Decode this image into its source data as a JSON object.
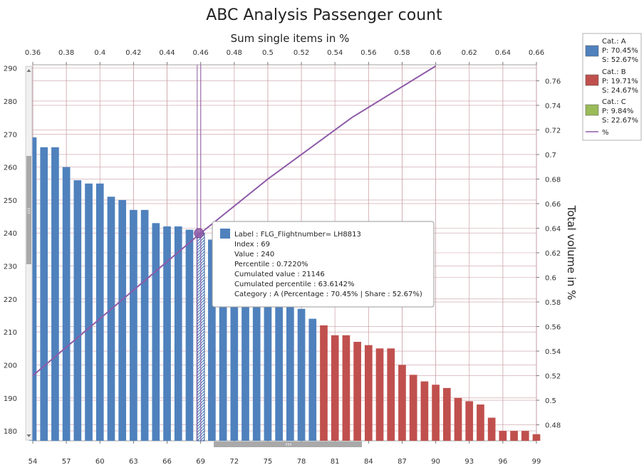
{
  "chart_data": {
    "type": "bar",
    "title": "ABC Analysis Passenger count",
    "x_top_label": "Sum single items in %",
    "y_right_label": "Total volume in %",
    "x_bottom": {
      "min": 54,
      "max": 99,
      "ticks": [
        54,
        57,
        60,
        63,
        66,
        69,
        72,
        75,
        78,
        81,
        84,
        87,
        90,
        93,
        96,
        99
      ]
    },
    "x_top": {
      "min": 0.36,
      "max": 0.66,
      "ticks": [
        "0.36",
        "0.38",
        "0.4",
        "0.42",
        "0.44",
        "0.46",
        "0.48",
        "0.5",
        "0.52",
        "0.54",
        "0.56",
        "0.58",
        "0.6",
        "0.62",
        "0.64",
        "0.66"
      ]
    },
    "y_left": {
      "min": 177,
      "max": 291,
      "ticks": [
        180,
        190,
        200,
        210,
        220,
        230,
        240,
        250,
        260,
        270,
        280,
        290
      ]
    },
    "y_right": {
      "min": 0.467,
      "max": 0.773,
      "ticks": [
        "0.48",
        "0.5",
        "0.52",
        "0.54",
        "0.56",
        "0.58",
        "0.6",
        "0.62",
        "0.64",
        "0.66",
        "0.68",
        "0.7",
        "0.72",
        "0.74",
        "0.76"
      ]
    },
    "grid": true,
    "legend_position": "right",
    "categories_index": [
      54,
      55,
      56,
      57,
      58,
      59,
      60,
      61,
      62,
      63,
      64,
      65,
      66,
      67,
      68,
      69,
      70,
      71,
      72,
      73,
      74,
      75,
      76,
      77,
      78,
      79,
      80,
      81,
      82,
      83,
      84,
      85,
      86,
      87,
      88,
      89,
      90,
      91,
      92,
      93,
      94,
      95,
      96,
      97,
      98,
      99
    ],
    "values": [
      269,
      266,
      266,
      260,
      256,
      255,
      255,
      251,
      250,
      247,
      247,
      243,
      242,
      242,
      241,
      240,
      238,
      235,
      232,
      230,
      227,
      225,
      222,
      220,
      217,
      214,
      212,
      209,
      209,
      207,
      206,
      205,
      205,
      200,
      197,
      195,
      194,
      193,
      190,
      189,
      188,
      184,
      180,
      180,
      180,
      179
    ],
    "category_of_bar": [
      "A",
      "A",
      "A",
      "A",
      "A",
      "A",
      "A",
      "A",
      "A",
      "A",
      "A",
      "A",
      "A",
      "A",
      "A",
      "A",
      "A",
      "A",
      "A",
      "A",
      "A",
      "A",
      "A",
      "A",
      "A",
      "A",
      "B",
      "B",
      "B",
      "B",
      "B",
      "B",
      "B",
      "B",
      "B",
      "B",
      "B",
      "B",
      "B",
      "B",
      "B",
      "B",
      "B",
      "B",
      "B",
      "B"
    ],
    "highlighted_index": 69,
    "cumulative_line": {
      "name": "%",
      "x": [
        0.36,
        0.46,
        0.5,
        0.55,
        0.6
      ],
      "y": [
        0.52,
        0.636,
        0.68,
        0.73,
        0.772
      ]
    },
    "marker": {
      "x": 0.459,
      "y": 0.636
    },
    "colors": {
      "A": "#4f81bd",
      "B": "#c0504d",
      "C": "#9bbb59",
      "line": "#8e5ba8",
      "grid": "#c99da4"
    },
    "legend": [
      {
        "cat": "Cat.: A",
        "p": "P: 70.45%",
        "s": "S: 52.67%",
        "color": "#4f81bd"
      },
      {
        "cat": "Cat.: B",
        "p": "P: 19.71%",
        "s": "S: 24.67%",
        "color": "#c0504d"
      },
      {
        "cat": "Cat.: C",
        "p": "P: 9.84%",
        "s": "S: 22.67%",
        "color": "#9bbb59"
      }
    ],
    "legend_line_label": "%",
    "tooltip": {
      "lines": [
        "Label : FLG_Flightnumber= LH8813",
        "Index : 69",
        "Value : 240",
        "Percentile : 0.7220%",
        "Cumulated value : 21146",
        "Cumulated percentile : 63.6142%",
        "Category : A (Percentage : 70.45% | Share : 52.67%)"
      ],
      "color": "#4f81bd"
    }
  }
}
